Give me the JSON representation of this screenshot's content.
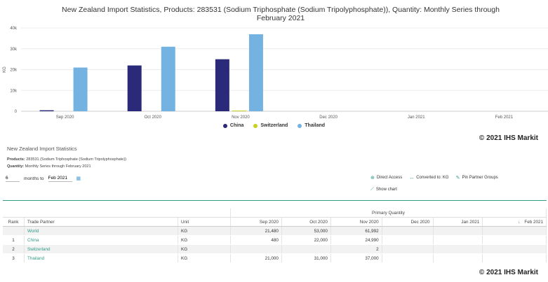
{
  "chart": {
    "title_line1": "New Zealand Import Statistics, Products: 283531 (Sodium Triphosphate (Sodium Tripolyphosphate)), Quantity: Monthly Series through",
    "title_line2": "February 2021"
  },
  "chart_data": {
    "type": "bar",
    "categories": [
      "Sep 2020",
      "Oct 2020",
      "Nov 2020",
      "Dec 2020",
      "Jan 2021",
      "Feb 2021"
    ],
    "series": [
      {
        "name": "China",
        "color": "#2b2a7a",
        "values": [
          480,
          22000,
          24990,
          0,
          0,
          0
        ]
      },
      {
        "name": "Switzerland",
        "color": "#c8d21c",
        "values": [
          0,
          0,
          2,
          0,
          0,
          0
        ]
      },
      {
        "name": "Thailand",
        "color": "#74b2e2",
        "values": [
          21000,
          31000,
          37000,
          0,
          0,
          0
        ]
      }
    ],
    "ylabel": "KG",
    "yticks": [
      "0",
      "10k",
      "20k",
      "30k",
      "40k"
    ],
    "ylim": [
      0,
      40000
    ],
    "legend_position": "bottom"
  },
  "copyright": "© 2021 IHS Markit",
  "panel": {
    "title": "New Zealand Import Statistics",
    "products_label": "Products:",
    "products_value": "283531 (Sodium Triphosphate (Sodium Tripolyphosphate))",
    "quantity_label": "Quantity:",
    "quantity_value": "Monthly Series through February 2021"
  },
  "controls": {
    "months_value": "6",
    "months_to_label": "months to",
    "date_value": "Feb 2021",
    "direct_access": "Direct Access",
    "converted": "Converted to: KG",
    "pin_groups": "Pin Partner Groups",
    "show_chart": "Show chart"
  },
  "table": {
    "group_header": "Primary Quantity",
    "headers": [
      "Rank",
      "Trade Partner",
      "Unit",
      "Sep 2020",
      "Oct 2020",
      "Nov 2020",
      "Dec 2020",
      "Jan 2021",
      "Feb 2021"
    ],
    "rows": [
      [
        "",
        "World",
        "KG",
        "21,480",
        "53,000",
        "61,992",
        "",
        "",
        ""
      ],
      [
        "1",
        "China",
        "KG",
        "480",
        "22,000",
        "24,990",
        "",
        "",
        ""
      ],
      [
        "2",
        "Switzerland",
        "KG",
        "",
        "",
        "2",
        "",
        "",
        ""
      ],
      [
        "3",
        "Thailand",
        "KG",
        "21,000",
        "31,000",
        "37,000",
        "",
        "",
        ""
      ]
    ]
  }
}
